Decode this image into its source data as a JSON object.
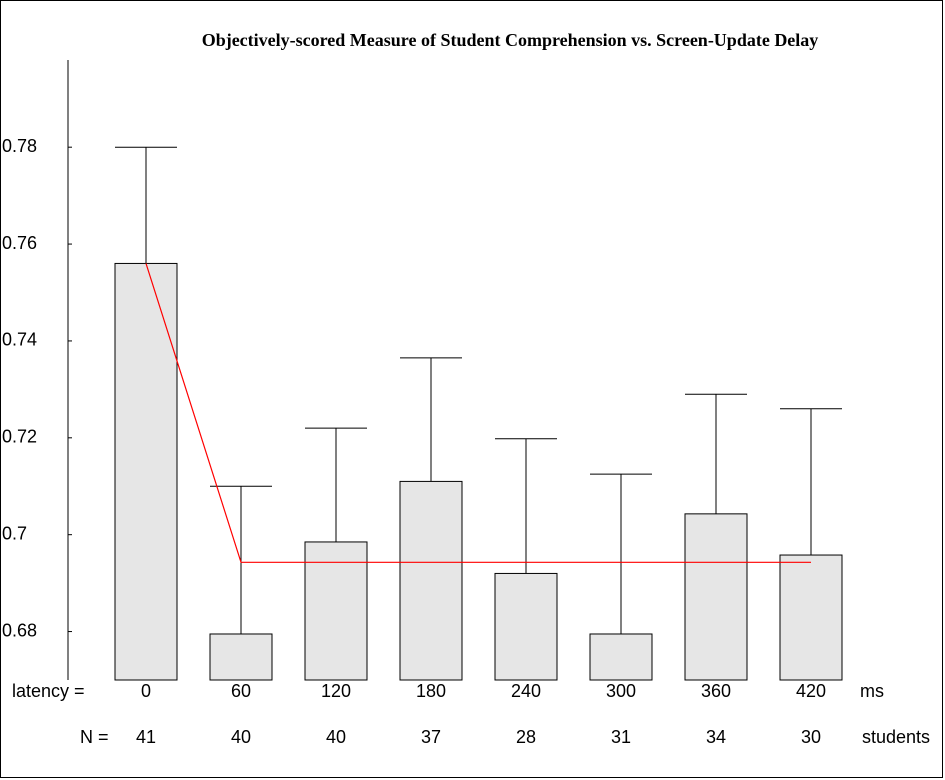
{
  "chart_data": {
    "type": "bar",
    "title": "Objectively-scored Measure of Student Comprehension vs. Screen-Update Delay",
    "x_prefix": "latency =",
    "x_unit": "ms",
    "n_prefix": "N =",
    "n_unit": "students",
    "categories": [
      "0",
      "60",
      "120",
      "180",
      "240",
      "300",
      "360",
      "420"
    ],
    "n": [
      "41",
      "40",
      "40",
      "37",
      "28",
      "31",
      "34",
      "30"
    ],
    "values": [
      0.756,
      0.6795,
      0.6985,
      0.711,
      0.692,
      0.6795,
      0.7043,
      0.6958
    ],
    "errors": [
      0.024,
      0.0305,
      0.0235,
      0.0255,
      0.0278,
      0.033,
      0.0247,
      0.0302
    ],
    "fit_values": [
      0.756,
      0.6943,
      0.6943,
      0.6943,
      0.6943,
      0.6943,
      0.6943,
      0.6943
    ],
    "color": "#e6e6e6",
    "fit_color": "#ff0000",
    "ylim": [
      0.67,
      0.798
    ],
    "yticks": [
      0.68,
      0.7,
      0.72,
      0.74,
      0.76,
      0.78
    ],
    "grid": false
  }
}
